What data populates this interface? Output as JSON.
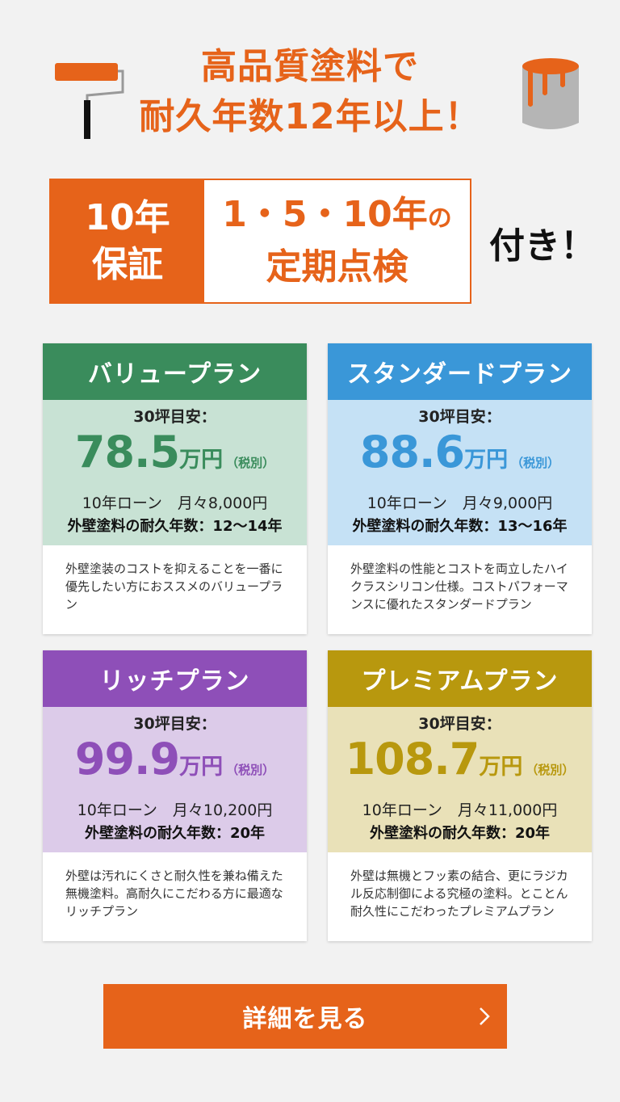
{
  "headline": {
    "line1": "高品質塗料で",
    "line2": "耐久年数12年以上！"
  },
  "guarantee": {
    "left_line1": "10年",
    "left_line2": "保証",
    "right_line1": "1・5・10年",
    "right_small": "の",
    "right_line2": "定期点検",
    "suffix": "付き！"
  },
  "colors": {
    "brand_orange": "#e6631a",
    "value": "#3a8c5c",
    "standard": "#3a97d8",
    "rich": "#8e4fb8",
    "premium": "#b8980e"
  },
  "plans": [
    {
      "name": "バリュープラン",
      "tsubo": "30坪目安：",
      "price": "78.5",
      "unit": "万円",
      "tax": "（税別）",
      "loan": "10年ローン　月々8,000円",
      "durability": "外壁塗料の耐久年数：12〜14年",
      "description": "外壁塗装のコストを抑えることを一番に優先したい方におススメのバリュープラン"
    },
    {
      "name": "スタンダードプラン",
      "tsubo": "30坪目安：",
      "price": "88.6",
      "unit": "万円",
      "tax": "（税別）",
      "loan": "10年ローン　月々9,000円",
      "durability": "外壁塗料の耐久年数：13〜16年",
      "description": "外壁塗料の性能とコストを両立したハイクラスシリコン仕様。コストパフォーマンスに優れたスタンダードプラン"
    },
    {
      "name": "リッチプラン",
      "tsubo": "30坪目安：",
      "price": "99.9",
      "unit": "万円",
      "tax": "（税別）",
      "loan": "10年ローン　月々10,200円",
      "durability": "外壁塗料の耐久年数：20年",
      "description": "外壁は汚れにくさと耐久性を兼ね備えた無機塗料。高耐久にこだわる方に最適なリッチプラン"
    },
    {
      "name": "プレミアムプラン",
      "tsubo": "30坪目安：",
      "price": "108.7",
      "unit": "万円",
      "tax": "（税別）",
      "loan": "10年ローン　月々11,000円",
      "durability": "外壁塗料の耐久年数：20年",
      "description": "外壁は無機とフッ素の結合、更にラジカル反応制御による究極の塗料。とことん耐久性にこだわったプレミアムプラン"
    }
  ],
  "cta": {
    "label": "詳細を見る",
    "icon": "chevron-right-icon"
  }
}
